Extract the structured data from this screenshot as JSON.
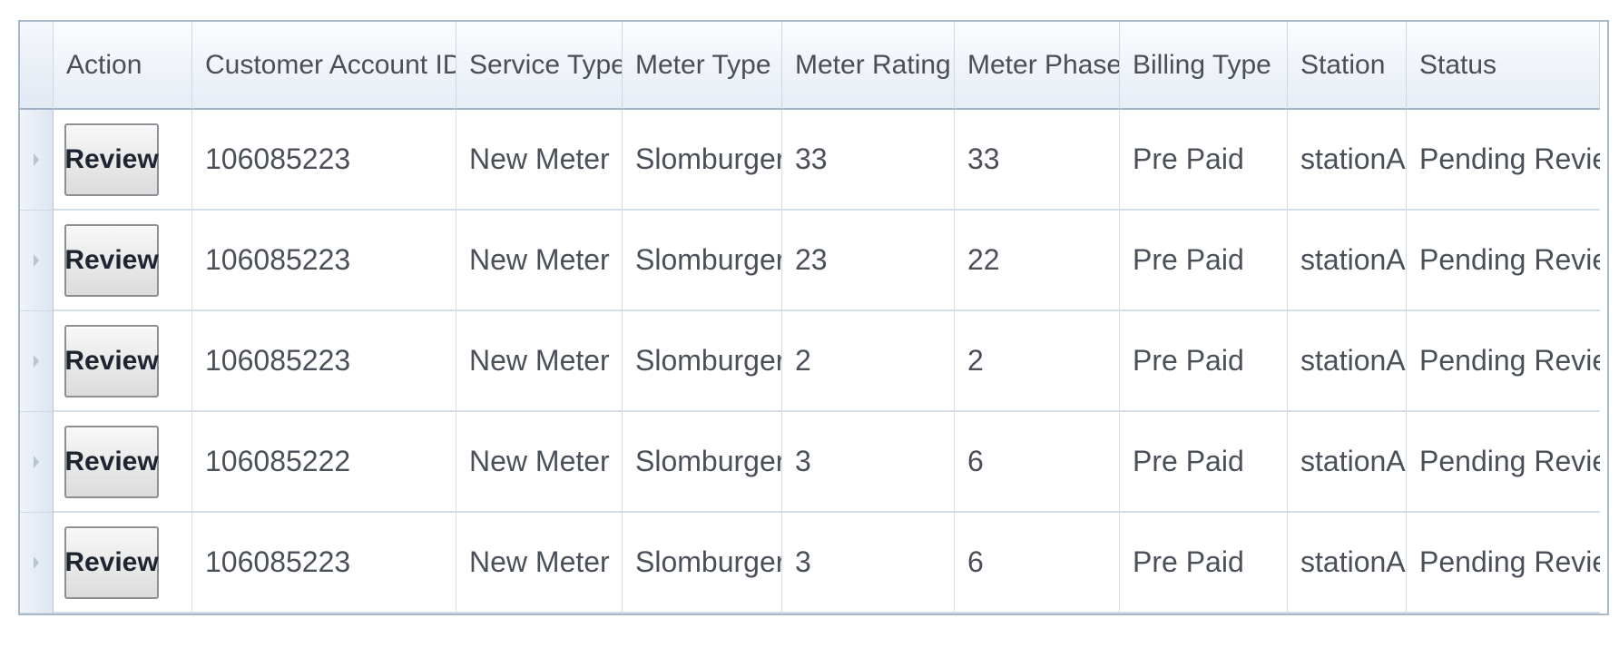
{
  "grid": {
    "columns": [
      "Action",
      "Customer Account ID",
      "Service Type",
      "Meter Type",
      "Meter Rating",
      "Meter Phase",
      "Billing Type",
      "Station",
      "Status"
    ],
    "rows": [
      {
        "action": "Review",
        "customer_account_id": "106085223",
        "service_type": "New Meter",
        "meter_type": "Slomburger",
        "meter_rating": "33",
        "meter_phase": "33",
        "billing_type": "Pre Paid",
        "station": "stationA",
        "status": "Pending Review"
      },
      {
        "action": "Review",
        "customer_account_id": "106085223",
        "service_type": "New Meter",
        "meter_type": "Slomburger",
        "meter_rating": "23",
        "meter_phase": "22",
        "billing_type": "Pre Paid",
        "station": "stationA",
        "status": "Pending Review"
      },
      {
        "action": "Review",
        "customer_account_id": "106085223",
        "service_type": "New Meter",
        "meter_type": "Slomburger",
        "meter_rating": "2",
        "meter_phase": "2",
        "billing_type": "Pre Paid",
        "station": "stationA",
        "status": "Pending Review"
      },
      {
        "action": "Review",
        "customer_account_id": "106085222",
        "service_type": "New Meter",
        "meter_type": "Slomburger",
        "meter_rating": "3",
        "meter_phase": "6",
        "billing_type": "Pre Paid",
        "station": "stationA",
        "status": "Pending Review"
      },
      {
        "action": "Review",
        "customer_account_id": "106085223",
        "service_type": "New Meter",
        "meter_type": "Slomburger",
        "meter_rating": "3",
        "meter_phase": "6",
        "billing_type": "Pre Paid",
        "station": "stationA",
        "status": "Pending Review"
      }
    ]
  },
  "colors": {
    "header_gradient_top": "#fbfcfe",
    "header_gradient_bottom": "#e6edf5",
    "grid_border": "#a9b8c9",
    "cell_line": "#d3dee9",
    "text": "#4b5058"
  },
  "icons": {
    "row_indicator": "row-indicator-arrow-icon"
  }
}
